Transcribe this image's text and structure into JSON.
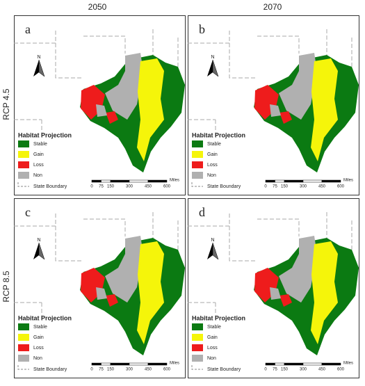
{
  "columns": [
    "2050",
    "2070"
  ],
  "rows": [
    "RCP 4.5",
    "RCP 8.5"
  ],
  "panels": [
    {
      "label": "a"
    },
    {
      "label": "b"
    },
    {
      "label": "c"
    },
    {
      "label": "d"
    }
  ],
  "north": "N",
  "legend": {
    "title": "Habitat Projection",
    "items": [
      {
        "label": "Stable",
        "color": "#0b7a12"
      },
      {
        "label": "Gain",
        "color": "#f5f50a"
      },
      {
        "label": "Loss",
        "color": "#ee1c1c"
      },
      {
        "label": "Non",
        "color": "#b0b0b0"
      }
    ],
    "boundary": "State Boundary"
  },
  "scale": {
    "ticks": [
      0,
      75,
      150,
      300,
      450,
      600
    ],
    "unit": "Miles"
  }
}
